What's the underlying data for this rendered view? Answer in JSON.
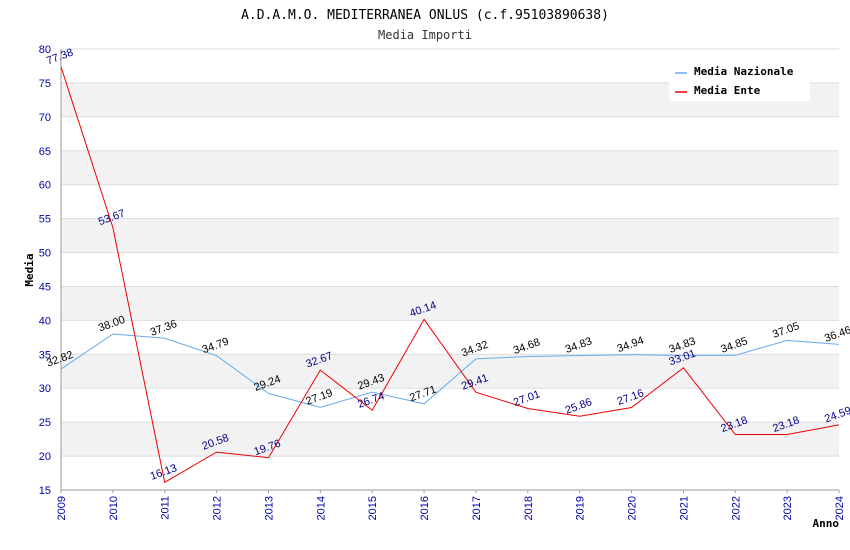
{
  "chart_data": {
    "type": "line",
    "title": "A.D.A.M.O. MEDITERRANEA ONLUS (c.f.95103890638)",
    "subtitle": "Media Importi",
    "xlabel": "Anno",
    "ylabel": "Media",
    "x": [
      "2009",
      "2010",
      "2011",
      "2012",
      "2013",
      "2014",
      "2015",
      "2016",
      "2017",
      "2018",
      "2019",
      "2020",
      "2021",
      "2022",
      "2023",
      "2024"
    ],
    "ylim": [
      15,
      80
    ],
    "yticks": [
      15,
      20,
      25,
      30,
      35,
      40,
      45,
      50,
      55,
      60,
      65,
      70,
      75,
      80
    ],
    "grid": "horizontal alternating bands",
    "legend_position": "top-right",
    "series": [
      {
        "name": "Media Nazionale",
        "color": "#66aaee",
        "label_color": "#000000",
        "values": [
          32.82,
          38.0,
          37.36,
          34.79,
          29.24,
          27.19,
          29.43,
          27.71,
          34.32,
          34.68,
          34.83,
          34.94,
          34.83,
          34.85,
          37.05,
          36.46
        ]
      },
      {
        "name": "Media Ente",
        "color": "#ee0000",
        "label_color": "#000088",
        "values": [
          77.38,
          53.67,
          16.13,
          20.58,
          19.76,
          32.67,
          26.74,
          40.14,
          29.41,
          27.01,
          25.86,
          27.16,
          33.01,
          23.18,
          23.18,
          24.59
        ]
      }
    ]
  }
}
